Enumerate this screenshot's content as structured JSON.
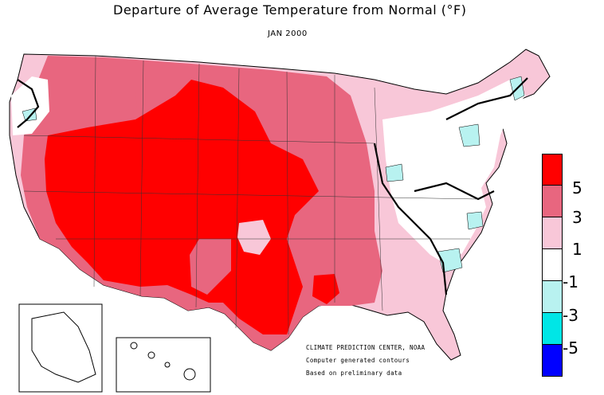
{
  "title": "Departure of Average Temperature from Normal (°F)",
  "subtitle": "JAN 2000",
  "legend": {
    "colors": [
      "#ff0000",
      "#e8667f",
      "#f8c7d8",
      "#ffffff",
      "#b8f2f0",
      "#00e6e6",
      "#0000ff"
    ],
    "labels": [
      "5",
      "3",
      "1",
      "-1",
      "-3",
      "-5"
    ]
  },
  "credit": {
    "line1": "CLIMATE PREDICTION CENTER, NOAA",
    "line2": "Computer generated contours",
    "line3": "Based on preliminary data"
  },
  "map_values": {
    "region_categories": [
      ">5",
      "3 to 5",
      "1 to 3",
      "-1 to 1",
      "-3 to -1"
    ]
  }
}
